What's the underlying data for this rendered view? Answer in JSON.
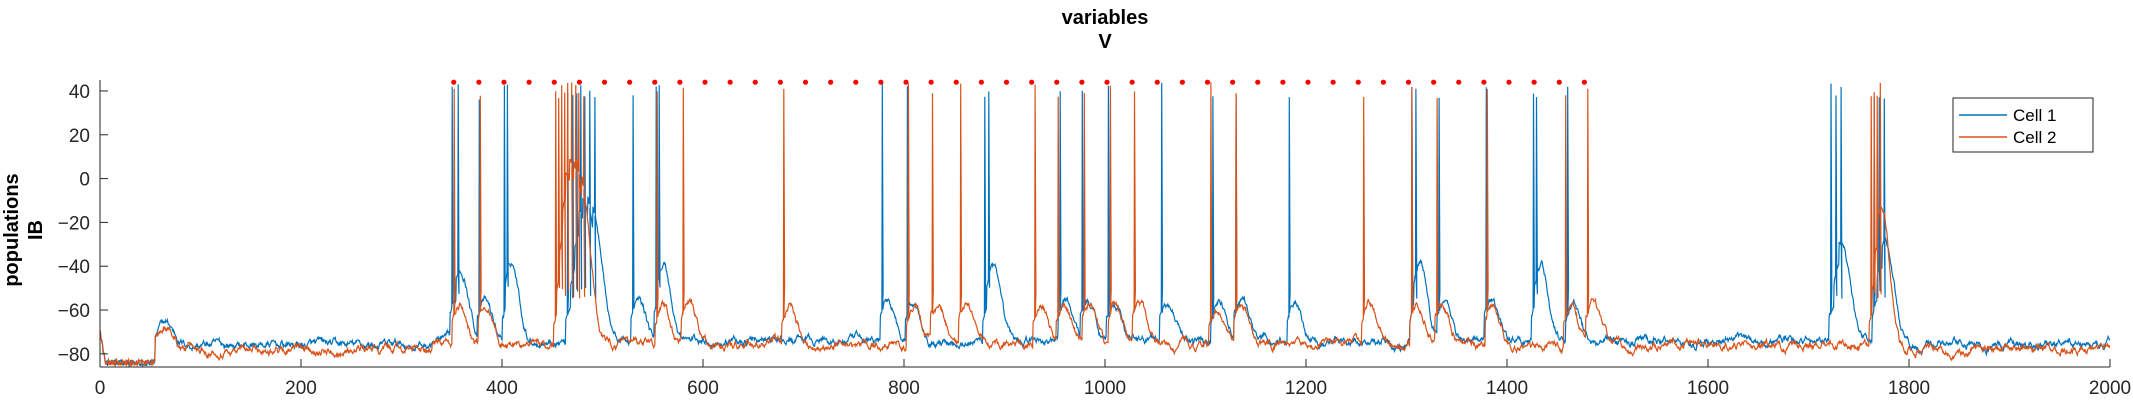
{
  "chart_data": {
    "type": "line",
    "title": [
      "variables",
      "V"
    ],
    "ylabel": [
      "populations",
      "IB"
    ],
    "xlabel": "",
    "xlim": [
      0,
      2000
    ],
    "ylim": [
      -86,
      45
    ],
    "xticks": [
      0,
      200,
      400,
      600,
      800,
      1000,
      1200,
      1400,
      1600,
      1800,
      2000
    ],
    "yticks": [
      -80,
      -60,
      -40,
      -20,
      0,
      20,
      40
    ],
    "grid": false,
    "legend_position": "top-right",
    "series": [
      {
        "name": "Cell 1",
        "color": "#0072BD",
        "baseline": -76,
        "spike_times": [
          350,
          356,
          377,
          402,
          405,
          465,
          470,
          474,
          478,
          482,
          487,
          492,
          530,
          553,
          556,
          778,
          803,
          880,
          884,
          955,
          977,
          1003,
          1056,
          1107,
          1130,
          1183,
          1305,
          1309,
          1332,
          1379,
          1426,
          1429,
          1460,
          1722,
          1727,
          1732,
          1765,
          1770,
          1775
        ]
      },
      {
        "name": "Cell 2",
        "color": "#D95319",
        "baseline": -78,
        "spike_times": [
          352,
          378,
          453,
          456,
          459,
          462,
          465,
          469,
          473,
          476,
          481,
          554,
          580,
          680,
          804,
          828,
          856,
          930,
          953,
          979,
          1005,
          1029,
          1105,
          1130,
          1257,
          1305,
          1330,
          1380,
          1458,
          1480,
          1762,
          1765,
          1768,
          1771
        ]
      }
    ],
    "markers": {
      "color": "#FF0000",
      "y": 44,
      "x_start": 352,
      "x_end": 1478,
      "spacing": 25
    }
  }
}
